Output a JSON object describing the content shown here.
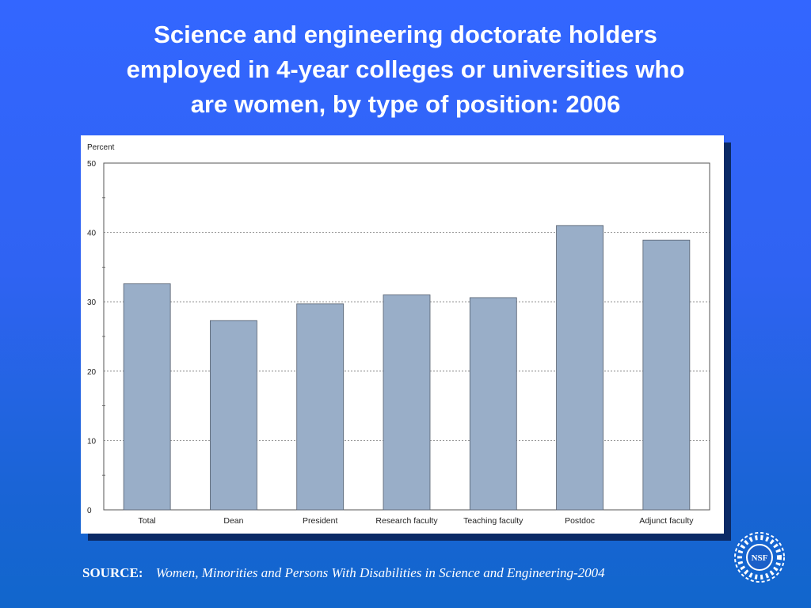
{
  "slide": {
    "title_lines": [
      "Science and engineering doctorate holders",
      "employed in 4-year colleges or universities who",
      "are women, by type of position: 2006"
    ]
  },
  "chart_data": {
    "type": "bar",
    "ylabel": "Percent",
    "xlabel": "",
    "ylim": [
      0,
      50
    ],
    "yticks": [
      0,
      10,
      20,
      30,
      40,
      50
    ],
    "grid": true,
    "categories": [
      "Total",
      "Dean",
      "President",
      "Research faculty",
      "Teaching faculty",
      "Postdoc",
      "Adjunct faculty"
    ],
    "values": [
      32.6,
      27.3,
      29.7,
      31.0,
      30.6,
      41.0,
      38.9
    ],
    "bar_color": "#99aec8",
    "bar_edge_color": "#555f6e"
  },
  "source": {
    "label": "SOURCE:",
    "citation": "Women, Minorities and Persons With Disabilities in Science and Engineering-2004"
  },
  "logo": {
    "text": "NSF",
    "icon": "nsf-logo-icon"
  },
  "colors": {
    "background_top": "#3366ff",
    "background_bottom": "#1166cc",
    "title_text": "#ffffff",
    "panel_shadow": "#0b2a66"
  }
}
